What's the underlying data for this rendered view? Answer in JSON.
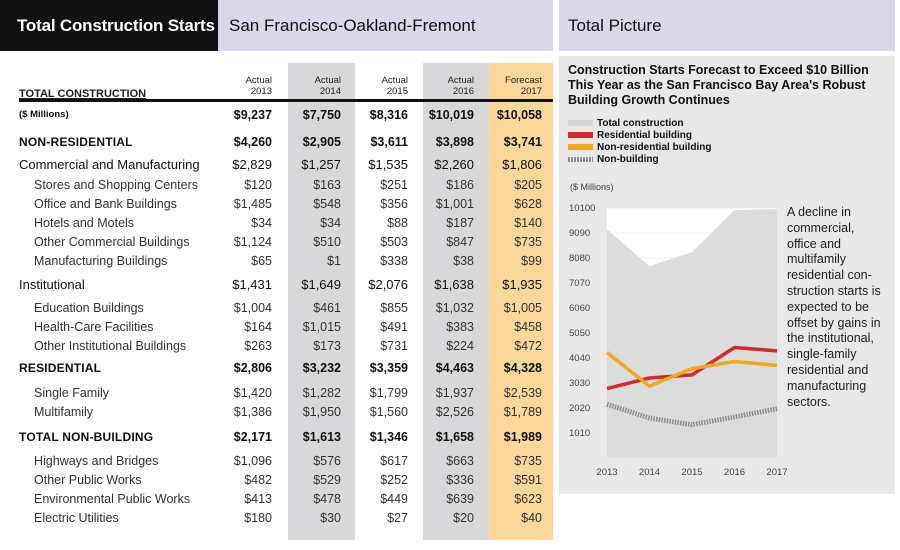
{
  "header": {
    "title": "Total Construction Starts",
    "region": "San Francisco-Oakland-Fremont",
    "right_title": "Total Picture"
  },
  "table": {
    "columns": [
      {
        "status": "Actual",
        "year": "2013"
      },
      {
        "status": "Actual",
        "year": "2014"
      },
      {
        "status": "Actual",
        "year": "2015"
      },
      {
        "status": "Actual",
        "year": "2016"
      },
      {
        "status": "Forecast",
        "year": "2017"
      }
    ],
    "head_label": "TOTAL CONSTRUCTION",
    "units_label": "($ Millions)",
    "rows": [
      {
        "label": "($ Millions)",
        "values": [
          "$9,237",
          "$7,750",
          "$8,316",
          "$10,019",
          "$10,058"
        ],
        "style": "units"
      },
      {
        "label": "NON-RESIDENTIAL",
        "values": [
          "$4,260",
          "$2,905",
          "$3,611",
          "$3,898",
          "$3,741"
        ],
        "style": "section"
      },
      {
        "label": "Commercial and Manufacturing",
        "values": [
          "$2,829",
          "$1,257",
          "$1,535",
          "$2,260",
          "$1,806"
        ],
        "style": "category"
      },
      {
        "label": "Stores and Shopping Centers",
        "values": [
          "$120",
          "$163",
          "$251",
          "$186",
          "$205"
        ],
        "style": "item"
      },
      {
        "label": "Office and Bank Buildings",
        "values": [
          "$1,485",
          "$548",
          "$356",
          "$1,001",
          "$628"
        ],
        "style": "item"
      },
      {
        "label": "Hotels and Motels",
        "values": [
          "$34",
          "$34",
          "$88",
          "$187",
          "$140"
        ],
        "style": "item"
      },
      {
        "label": "Other Commercial Buildings",
        "values": [
          "$1,124",
          "$510",
          "$503",
          "$847",
          "$735"
        ],
        "style": "item"
      },
      {
        "label": "Manufacturing Buildings",
        "values": [
          "$65",
          "$1",
          "$338",
          "$38",
          "$99"
        ],
        "style": "item"
      },
      {
        "label": "Institutional",
        "values": [
          "$1,431",
          "$1,649",
          "$2,076",
          "$1,638",
          "$1,935"
        ],
        "style": "category"
      },
      {
        "label": "Education Buildings",
        "values": [
          "$1,004",
          "$461",
          "$855",
          "$1,032",
          "$1,005"
        ],
        "style": "item"
      },
      {
        "label": "Health-Care Facilities",
        "values": [
          "$164",
          "$1,015",
          "$491",
          "$383",
          "$458"
        ],
        "style": "item"
      },
      {
        "label": "Other Institutional Buildings",
        "values": [
          "$263",
          "$173",
          "$731",
          "$224",
          "$472"
        ],
        "style": "item"
      },
      {
        "label": "RESIDENTIAL",
        "values": [
          "$2,806",
          "$3,232",
          "$3,359",
          "$4,463",
          "$4,328"
        ],
        "style": "section"
      },
      {
        "label": "Single Family",
        "values": [
          "$1,420",
          "$1,282",
          "$1,799",
          "$1,937",
          "$2,539"
        ],
        "style": "item"
      },
      {
        "label": "Multifamily",
        "values": [
          "$1,386",
          "$1,950",
          "$1,560",
          "$2,526",
          "$1,789"
        ],
        "style": "item"
      },
      {
        "label": "TOTAL NON-BUILDING",
        "values": [
          "$2,171",
          "$1,613",
          "$1,346",
          "$1,658",
          "$1,989"
        ],
        "style": "section"
      },
      {
        "label": "Highways and Bridges",
        "values": [
          "$1,096",
          "$576",
          "$617",
          "$663",
          "$735"
        ],
        "style": "item"
      },
      {
        "label": "Other Public Works",
        "values": [
          "$482",
          "$529",
          "$252",
          "$336",
          "$591"
        ],
        "style": "item"
      },
      {
        "label": "Environmental Public Works",
        "values": [
          "$413",
          "$478",
          "$449",
          "$639",
          "$623"
        ],
        "style": "item"
      },
      {
        "label": "Electric Utilities",
        "values": [
          "$180",
          "$30",
          "$27",
          "$20",
          "$40"
        ],
        "style": "item"
      }
    ],
    "colors": {
      "actual_shade": "#d8d8db",
      "forecast_shade": "#f9d89a",
      "header_black": "#111111",
      "header_lavender": "#d9d7e8"
    }
  },
  "chart_data": {
    "type": "line",
    "title": "Construction Starts Forecast to Exceed $10 Billion This Year as the San Francisco Bay Area's Robust Building Growth Continues",
    "ylabel": "($ Millions)",
    "x": [
      "2013",
      "2014",
      "2015",
      "2016",
      "2017"
    ],
    "yticks": [
      1010,
      2020,
      3030,
      4040,
      5050,
      6060,
      7070,
      8080,
      9090,
      10100
    ],
    "ylim": [
      0,
      10100
    ],
    "series": [
      {
        "name": "Total construction",
        "kind": "area",
        "color": "#d6d6d6",
        "values": [
          9237,
          7750,
          8316,
          10019,
          10058
        ]
      },
      {
        "name": "Residential building",
        "kind": "line",
        "color": "#d42a2a",
        "values": [
          2806,
          3232,
          3359,
          4463,
          4328
        ]
      },
      {
        "name": "Non-residential building",
        "kind": "line",
        "color": "#f0a81c",
        "values": [
          4260,
          2905,
          3611,
          3898,
          3741
        ]
      },
      {
        "name": "Non-building",
        "kind": "dashed",
        "color": "#8c8c8c",
        "values": [
          2171,
          1613,
          1346,
          1658,
          1989
        ]
      }
    ],
    "annotation": "A decline in commercial, office and multifamily residential con-struction starts is expected to be offset by gains in the institutional, single-family residential and manufacturing sectors.",
    "legend_position": "top-left"
  }
}
